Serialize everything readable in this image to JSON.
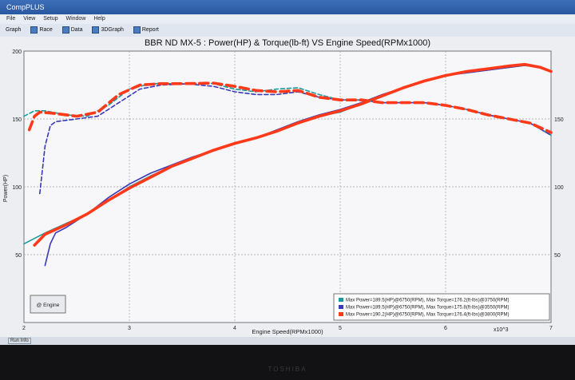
{
  "window": {
    "title": "CompPLUS"
  },
  "menu": [
    "File",
    "View",
    "Setup",
    "Window",
    "Help"
  ],
  "toolbar": [
    {
      "label": "Graph"
    },
    {
      "label": "Race"
    },
    {
      "label": "Data"
    },
    {
      "label": "3DGraph"
    },
    {
      "label": "Report"
    }
  ],
  "status": {
    "tab": "Run Info"
  },
  "bezel": {
    "brand": "TOSHIBA"
  },
  "chart_data": {
    "type": "line",
    "title": "BBR ND MX-5 : Power(HP) & Torque(lb-ft) VS Engine Speed(RPMx1000)",
    "xlabel": "Engine Speed(RPMx1000)",
    "ylabel": "Power(HP)",
    "x_multiplier_label": "x10^3",
    "xlim": [
      2,
      7
    ],
    "ylim": [
      0,
      200
    ],
    "x_ticks": [
      "2",
      "3",
      "4",
      "5",
      "6",
      "7"
    ],
    "y_ticks_left": [
      "50",
      "100",
      "150",
      "200"
    ],
    "y_ticks_right": [
      "50",
      "100",
      "150"
    ],
    "grid": true,
    "legend_position": "bottom-right",
    "engine_button": "@ Engine",
    "legend": [
      {
        "color": "#1a9a9a",
        "text": "Max Power=189.5(HP)@6750(RPM), Max Torque=176.2(ft-lbs)@3750(RPM)"
      },
      {
        "color": "#3a3ab8",
        "text": "Max Power=189.5(HP)@6750(RPM), Max Torque=175.8(ft-lbs)@3550(RPM)"
      },
      {
        "color": "#ff3a1a",
        "text": "Max Power=190.2(HP)@6750(RPM), Max Torque=176.4(ft-lbs)@3800(RPM)"
      }
    ],
    "series": [
      {
        "kind": "power",
        "color": "#1a9a9a",
        "width": 1.6,
        "dash": "",
        "x": [
          2.0,
          2.2,
          2.4,
          2.6,
          2.8,
          3.0,
          3.2,
          3.4,
          3.6,
          3.8,
          4.0,
          4.2,
          4.4,
          4.6,
          4.8,
          5.0,
          5.2,
          5.4,
          5.6,
          5.8,
          6.0,
          6.2,
          6.4,
          6.6,
          6.75,
          6.9,
          7.0
        ],
        "y": [
          58,
          66,
          73,
          80,
          90,
          100,
          108,
          115,
          121,
          127,
          132,
          136,
          141,
          147,
          152,
          155,
          161,
          167,
          173,
          178,
          182,
          184,
          186,
          188,
          189.5,
          188,
          185
        ]
      },
      {
        "kind": "power",
        "color": "#3a3ab8",
        "width": 1.6,
        "dash": "",
        "x": [
          2.2,
          2.25,
          2.3,
          2.4,
          2.6,
          2.8,
          3.0,
          3.2,
          3.4,
          3.6,
          3.8,
          4.0,
          4.2,
          4.4,
          4.6,
          4.8,
          5.0,
          5.2,
          5.4,
          5.6,
          5.8,
          6.0,
          6.2,
          6.4,
          6.6,
          6.75,
          6.9,
          7.0
        ],
        "y": [
          42,
          58,
          66,
          70,
          80,
          92,
          102,
          110,
          116,
          122,
          127,
          132,
          136,
          142,
          148,
          153,
          157,
          162,
          168,
          173,
          178,
          182,
          184,
          186,
          188,
          189.5,
          188,
          185
        ]
      },
      {
        "kind": "power",
        "color": "#ff3a1a",
        "width": 3.6,
        "dash": "",
        "x": [
          2.1,
          2.2,
          2.4,
          2.6,
          2.8,
          3.0,
          3.2,
          3.4,
          3.6,
          3.8,
          4.0,
          4.2,
          4.4,
          4.6,
          4.8,
          5.0,
          5.2,
          5.4,
          5.6,
          5.8,
          6.0,
          6.2,
          6.4,
          6.6,
          6.75,
          6.9,
          7.0
        ],
        "y": [
          57,
          65,
          72,
          80,
          90,
          99,
          107,
          115,
          121,
          127,
          132,
          136,
          141,
          147,
          152,
          156,
          161,
          167,
          173,
          178,
          182,
          185,
          187,
          189,
          190.2,
          188,
          185
        ]
      },
      {
        "kind": "torque",
        "color": "#1a9a9a",
        "width": 1.6,
        "dash": "5,3",
        "x": [
          2.0,
          2.1,
          2.2,
          2.4,
          2.6,
          2.8,
          3.0,
          3.2,
          3.4,
          3.6,
          3.75,
          3.8,
          4.0,
          4.2,
          4.4,
          4.6,
          4.8,
          5.0,
          5.2,
          5.4,
          5.6,
          5.8,
          6.0,
          6.2,
          6.4,
          6.6,
          6.8,
          7.0
        ],
        "y": [
          152,
          156,
          156,
          153,
          152,
          160,
          172,
          176,
          176,
          176,
          176.2,
          176,
          172,
          170,
          172,
          173,
          168,
          164,
          164,
          162,
          162,
          162,
          160,
          157,
          153,
          150,
          147,
          138
        ]
      },
      {
        "kind": "torque",
        "color": "#3a3ab8",
        "width": 1.6,
        "dash": "5,3",
        "x": [
          2.15,
          2.2,
          2.25,
          2.3,
          2.5,
          2.7,
          2.9,
          3.1,
          3.3,
          3.55,
          3.8,
          4.0,
          4.2,
          4.4,
          4.6,
          4.8,
          5.0,
          5.2,
          5.4,
          5.6,
          5.8,
          6.0,
          6.2,
          6.4,
          6.6,
          6.8,
          7.0
        ],
        "y": [
          95,
          130,
          145,
          148,
          150,
          152,
          162,
          172,
          175,
          175.8,
          174,
          170,
          168,
          168,
          170,
          166,
          164,
          164,
          162,
          162,
          162,
          160,
          157,
          153,
          150,
          147,
          138
        ]
      },
      {
        "kind": "torque",
        "color": "#ff3a1a",
        "width": 3.6,
        "dash": "11,6",
        "x": [
          2.05,
          2.1,
          2.15,
          2.3,
          2.5,
          2.7,
          2.9,
          3.1,
          3.3,
          3.5,
          3.8,
          4.0,
          4.2,
          4.4,
          4.6,
          4.8,
          5.0,
          5.2,
          5.4,
          5.6,
          5.8,
          6.0,
          6.2,
          6.4,
          6.6,
          6.8,
          7.0
        ],
        "y": [
          142,
          152,
          155,
          154,
          152,
          155,
          168,
          175,
          176,
          176,
          176.4,
          174,
          171,
          170,
          171,
          166,
          164,
          164,
          162,
          162,
          162,
          160,
          157,
          153,
          150,
          147,
          140
        ]
      }
    ]
  }
}
